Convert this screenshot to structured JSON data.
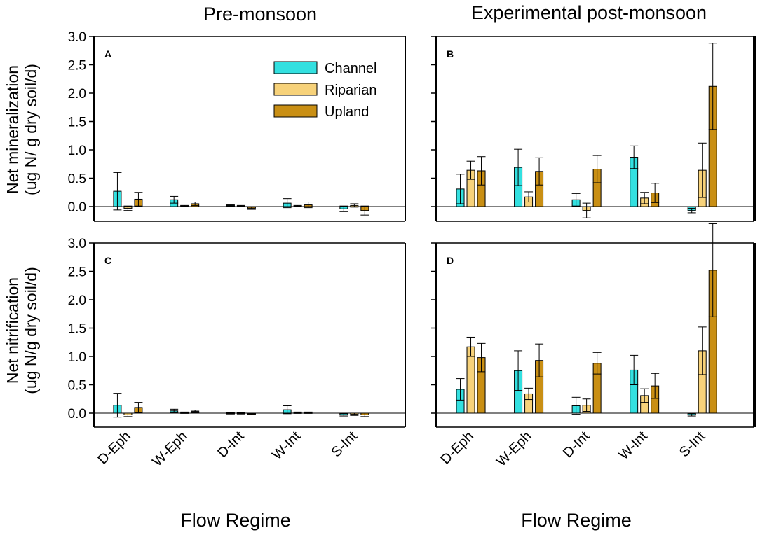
{
  "colors": {
    "Channel": "#33e0e0",
    "Riparian": "#f7d27a",
    "Upland": "#c98f14"
  },
  "column_titles": [
    "Pre-monsoon",
    "Experimental post-monsoon"
  ],
  "row_ylabels": [
    [
      "Net mineralization",
      "(ug N/ g dry soil/d)"
    ],
    [
      "Net nitrification",
      "(ug N/g dry soil/d)"
    ]
  ],
  "xlabel": "Flow Regime",
  "chart_data": [
    {
      "type": "bar",
      "panel": "A",
      "categories": [
        "D-Eph",
        "W-Eph",
        "D-Int",
        "W-Int",
        "S-Int"
      ],
      "ylim": [
        -0.25,
        3.0
      ],
      "yticks": [
        "0.0",
        "0.5",
        "1.0",
        "1.5",
        "2.0",
        "2.5",
        "3.0"
      ],
      "series": [
        {
          "name": "Channel",
          "values": [
            0.27,
            0.12,
            0.02,
            0.06,
            -0.04
          ],
          "errors": [
            0.33,
            0.06,
            0.01,
            0.08,
            0.05
          ]
        },
        {
          "name": "Riparian",
          "values": [
            -0.03,
            0.01,
            0.01,
            0.01,
            0.02
          ],
          "errors": [
            0.04,
            0.01,
            0.01,
            0.01,
            0.03
          ]
        },
        {
          "name": "Upland",
          "values": [
            0.13,
            0.05,
            -0.03,
            0.03,
            -0.07
          ],
          "errors": [
            0.12,
            0.03,
            0.02,
            0.05,
            0.08
          ]
        }
      ]
    },
    {
      "type": "bar",
      "panel": "B",
      "categories": [
        "D-Eph",
        "W-Eph",
        "D-Int",
        "W-Int",
        "S-Int"
      ],
      "ylim": [
        -0.25,
        3.0
      ],
      "yticks": [
        "0.0",
        "0.5",
        "1.0",
        "1.5",
        "2.0",
        "2.5",
        "3.0"
      ],
      "series": [
        {
          "name": "Channel",
          "values": [
            0.31,
            0.69,
            0.12,
            0.87,
            -0.07
          ],
          "errors": [
            0.26,
            0.32,
            0.11,
            0.2,
            0.04
          ]
        },
        {
          "name": "Riparian",
          "values": [
            0.64,
            0.17,
            -0.07,
            0.15,
            0.64
          ],
          "errors": [
            0.16,
            0.09,
            0.13,
            0.1,
            0.48
          ]
        },
        {
          "name": "Upland",
          "values": [
            0.63,
            0.62,
            0.66,
            0.24,
            2.12
          ],
          "errors": [
            0.25,
            0.24,
            0.24,
            0.17,
            0.76
          ]
        }
      ]
    },
    {
      "type": "bar",
      "panel": "C",
      "categories": [
        "D-Eph",
        "W-Eph",
        "D-Int",
        "W-Int",
        "S-Int"
      ],
      "ylim": [
        -0.25,
        3.0
      ],
      "yticks": [
        "0.0",
        "0.5",
        "1.0",
        "1.5",
        "2.0",
        "2.5",
        "3.0"
      ],
      "series": [
        {
          "name": "Channel",
          "values": [
            0.14,
            0.04,
            0.0,
            0.06,
            -0.03
          ],
          "errors": [
            0.21,
            0.03,
            0.01,
            0.07,
            0.02
          ]
        },
        {
          "name": "Riparian",
          "values": [
            -0.03,
            0.01,
            0.0,
            0.01,
            -0.02
          ],
          "errors": [
            0.03,
            0.01,
            0.01,
            0.01,
            0.02
          ]
        },
        {
          "name": "Upland",
          "values": [
            0.1,
            0.03,
            -0.02,
            0.01,
            -0.03
          ],
          "errors": [
            0.09,
            0.02,
            0.01,
            0.01,
            0.03
          ]
        }
      ]
    },
    {
      "type": "bar",
      "panel": "D",
      "categories": [
        "D-Eph",
        "W-Eph",
        "D-Int",
        "W-Int",
        "S-Int"
      ],
      "ylim": [
        -0.25,
        3.0
      ],
      "yticks": [
        "0.0",
        "0.5",
        "1.0",
        "1.5",
        "2.0",
        "2.5",
        "3.0"
      ],
      "series": [
        {
          "name": "Channel",
          "values": [
            0.42,
            0.75,
            0.13,
            0.76,
            -0.03
          ],
          "errors": [
            0.19,
            0.35,
            0.15,
            0.26,
            0.02
          ]
        },
        {
          "name": "Riparian",
          "values": [
            1.17,
            0.34,
            0.14,
            0.31,
            1.1
          ],
          "errors": [
            0.17,
            0.1,
            0.11,
            0.12,
            0.42
          ]
        },
        {
          "name": "Upland",
          "values": [
            0.98,
            0.93,
            0.88,
            0.48,
            2.52
          ],
          "errors": [
            0.25,
            0.29,
            0.19,
            0.22,
            0.82
          ]
        }
      ]
    }
  ]
}
